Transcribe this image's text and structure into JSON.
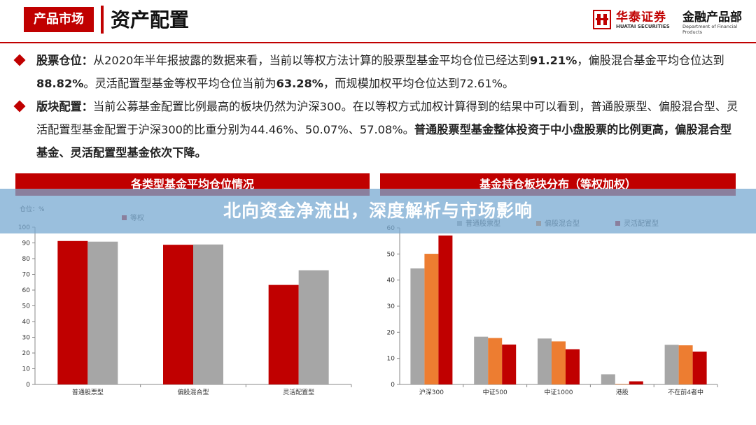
{
  "header": {
    "section_tag": "产品市场",
    "page_title": "资产配置",
    "brand_cn": "华泰证券",
    "brand_en": "HUATAI SECURITIES",
    "dept_cn": "金融产品部",
    "dept_en": "Department of Financial Products",
    "accent_color": "#c00000"
  },
  "bullets": [
    {
      "title": "股票仓位：",
      "parts": [
        {
          "text": "从2020年半年报披露的数据来看，当前以等权方法计算的股票型基金平均仓位已经达到",
          "bold": false
        },
        {
          "text": "91.21%",
          "bold": true
        },
        {
          "text": "，偏股混合基金平均仓位达到",
          "bold": false
        },
        {
          "text": "88.82%",
          "bold": true
        },
        {
          "text": "。灵活配置型基金等权平均仓位当前为",
          "bold": false
        },
        {
          "text": "63.28%",
          "bold": true
        },
        {
          "text": "，而规模加权平均仓位达到72.61%。",
          "bold": false
        }
      ]
    },
    {
      "title": "版块配置：",
      "parts": [
        {
          "text": "当前公募基金配置比例最高的板块仍然为沪深300。在以等权方式加权计算得到的结果中可以看到，普通股票型、偏股混合型、灵活配置型基金配置于沪深300的比重分别为44.46%、50.07%、57.08%。",
          "bold": false
        },
        {
          "text": "普通股票型基金整体投资于中小盘股票的比例更高，偏股混合型基金、灵活配置型基金依次下降。",
          "bold": true
        }
      ]
    }
  ],
  "banner": "北向资金净流出，深度解析与市场影响",
  "chart_data": [
    {
      "type": "bar",
      "title": "各类型基金平均仓位情况",
      "ylabel": "仓位：%",
      "categories": [
        "普通股票型",
        "偏股混合型",
        "灵活配置型"
      ],
      "series": [
        {
          "name": "等权",
          "color": "#c00000",
          "values": [
            91.21,
            88.82,
            63.28
          ]
        },
        {
          "name": "",
          "color": "#a6a6a6",
          "values": [
            90.8,
            89.0,
            72.61
          ]
        }
      ],
      "ylim": [
        0,
        100
      ],
      "yticks": [
        0,
        10,
        20,
        30,
        40,
        50,
        60,
        70,
        80,
        90,
        100
      ],
      "legend": "top"
    },
    {
      "type": "bar",
      "title": "基金持仓板块分布（等权加权）",
      "categories": [
        "沪深300",
        "中证500",
        "中证1000",
        "港股",
        "不在前4者中"
      ],
      "series": [
        {
          "name": "普通股票型",
          "color": "#a6a6a6",
          "values": [
            44.46,
            18.3,
            17.6,
            3.9,
            15.2
          ]
        },
        {
          "name": "偏股混合型",
          "color": "#ed7d31",
          "values": [
            50.07,
            17.8,
            16.5,
            0.2,
            15.0
          ]
        },
        {
          "name": "灵活配置型",
          "color": "#c00000",
          "values": [
            57.08,
            15.3,
            13.5,
            1.2,
            12.6
          ]
        }
      ],
      "ylim": [
        0,
        60
      ],
      "yticks": [
        0,
        10,
        20,
        30,
        40,
        50,
        60
      ],
      "legend": "top"
    }
  ]
}
